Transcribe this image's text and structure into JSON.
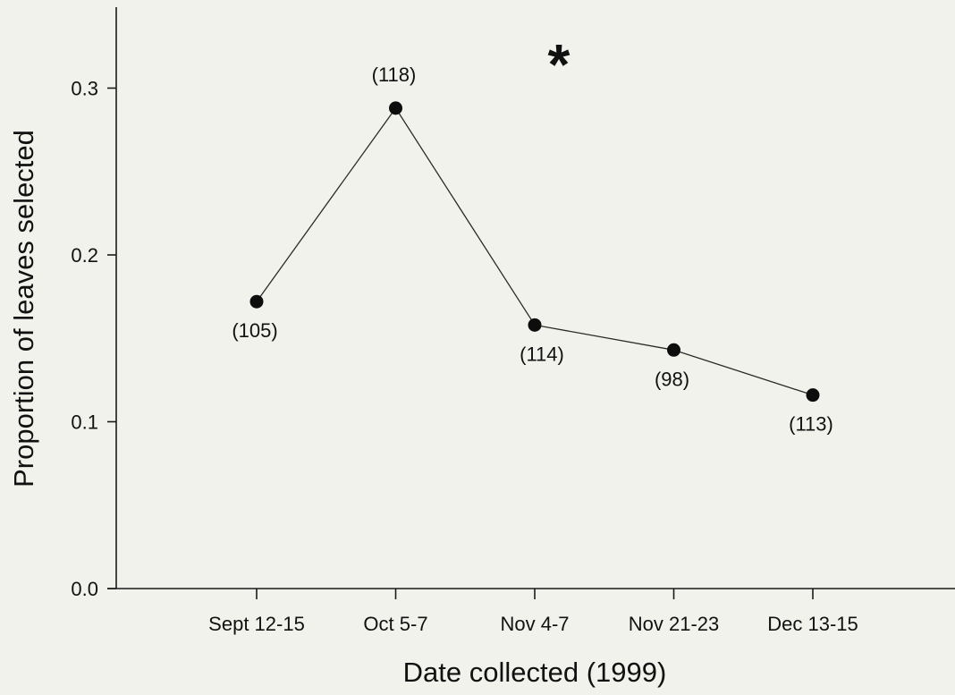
{
  "chart_data": {
    "type": "line",
    "title": "",
    "xlabel": "Date collected (1999)",
    "ylabel": "Proportion of leaves selected",
    "categories": [
      "Sept 12-15",
      "Oct 5-7",
      "Nov 4-7",
      "Nov 21-23",
      "Dec 13-15"
    ],
    "series": [
      {
        "values": [
          0.172,
          0.288,
          0.158,
          0.143,
          0.116
        ],
        "point_labels": [
          "(105)",
          "(118)",
          "(114)",
          "(98)",
          "(113)"
        ]
      }
    ],
    "ylim": [
      0.0,
      0.35
    ],
    "yticks": [
      0.0,
      0.1,
      0.2,
      0.3
    ],
    "ytick_labels": [
      "0.0",
      "0.1",
      "0.2",
      "0.3"
    ],
    "annotation": "*",
    "grid": false,
    "legend": "none"
  }
}
